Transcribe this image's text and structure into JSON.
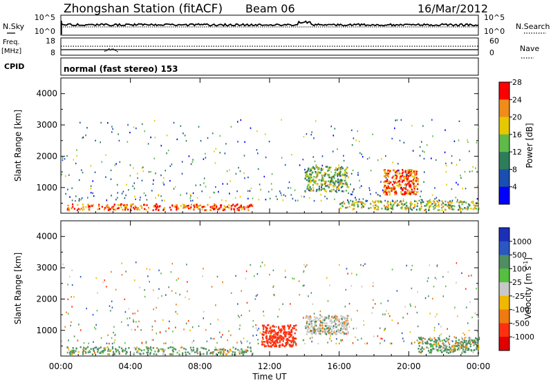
{
  "header": {
    "station": "Zhongshan Station (fitACF)",
    "beam": "Beam 06",
    "date": "16/Mar/2012"
  },
  "aux_panel": {
    "nsky_label": "N.Sky",
    "nsky_ticks": [
      "10^5",
      "10^0"
    ],
    "nsearch_label": "N.Search",
    "nsearch_ticks": [
      "10^5",
      "10^0"
    ],
    "freq_label": "Freq.",
    "freq_unit": "[MHz]",
    "freq_ticks": [
      "18",
      "8"
    ],
    "nave_label": "Nave",
    "nave_ticks": [
      "60",
      "0"
    ],
    "cpid_label": "CPID",
    "cpid_text": "normal (fast stereo) 153"
  },
  "chart_data": [
    {
      "type": "heatmap",
      "panel": "power",
      "ylabel": "Slant Range [km]",
      "yticks": [
        1000,
        2000,
        3000,
        4000
      ],
      "ylim": [
        180,
        4500
      ],
      "xlim_hours": [
        0,
        24
      ],
      "colorbar": {
        "label": "Power [dB]",
        "ticks": [
          "4",
          "8",
          "12",
          "16",
          "20",
          "24",
          "28"
        ],
        "bins": [
          "#0000ff",
          "#1a4fb0",
          "#2e7d5a",
          "#5fba4a",
          "#e6c800",
          "#f08c1a",
          "#ff0000"
        ]
      },
      "description_bands": [
        {
          "hours": [
            0.3,
            11.0
          ],
          "range_km": [
            300,
            500
          ],
          "level_db": 24
        },
        {
          "hours": [
            14.0,
            16.5
          ],
          "range_km": [
            900,
            1700
          ],
          "level_db": 14
        },
        {
          "hours": [
            18.5,
            20.5
          ],
          "range_km": [
            800,
            1600
          ],
          "level_db": 24
        },
        {
          "hours": [
            16.0,
            24.0
          ],
          "range_km": [
            300,
            600
          ],
          "level_db": 16
        }
      ]
    },
    {
      "type": "heatmap",
      "panel": "velocity",
      "ylabel": "Slant Range [km]",
      "yticks": [
        1000,
        2000,
        3000,
        4000
      ],
      "ylim": [
        180,
        4500
      ],
      "xlim_hours": [
        0,
        24
      ],
      "xlabel": "Time UT",
      "xticks": [
        "00:00",
        "04:00",
        "08:00",
        "12:00",
        "16:00",
        "20:00",
        "00:00"
      ],
      "colorbar": {
        "label": "Velocity [m s",
        "label_sup": "-1",
        "label_end": "]",
        "ticks": [
          "1000",
          "500",
          "100",
          "25",
          "-25",
          "-100",
          "-500",
          "-1000"
        ],
        "bins": [
          "#1c2fb8",
          "#2a57c2",
          "#4e8e62",
          "#55c040",
          "#c8c8c8",
          "#f0b800",
          "#f07a10",
          "#ff3010",
          "#e00000"
        ]
      },
      "description_bands": [
        {
          "hours": [
            0.3,
            11.0
          ],
          "range_km": [
            250,
            500
          ],
          "velocity": 100
        },
        {
          "hours": [
            14.0,
            16.5
          ],
          "range_km": [
            900,
            1500
          ],
          "velocity": 0
        },
        {
          "hours": [
            11.5,
            13.5
          ],
          "range_km": [
            500,
            1200
          ],
          "velocity": -500
        },
        {
          "hours": [
            20.5,
            24.0
          ],
          "range_km": [
            300,
            800
          ],
          "velocity": 100
        }
      ]
    }
  ]
}
